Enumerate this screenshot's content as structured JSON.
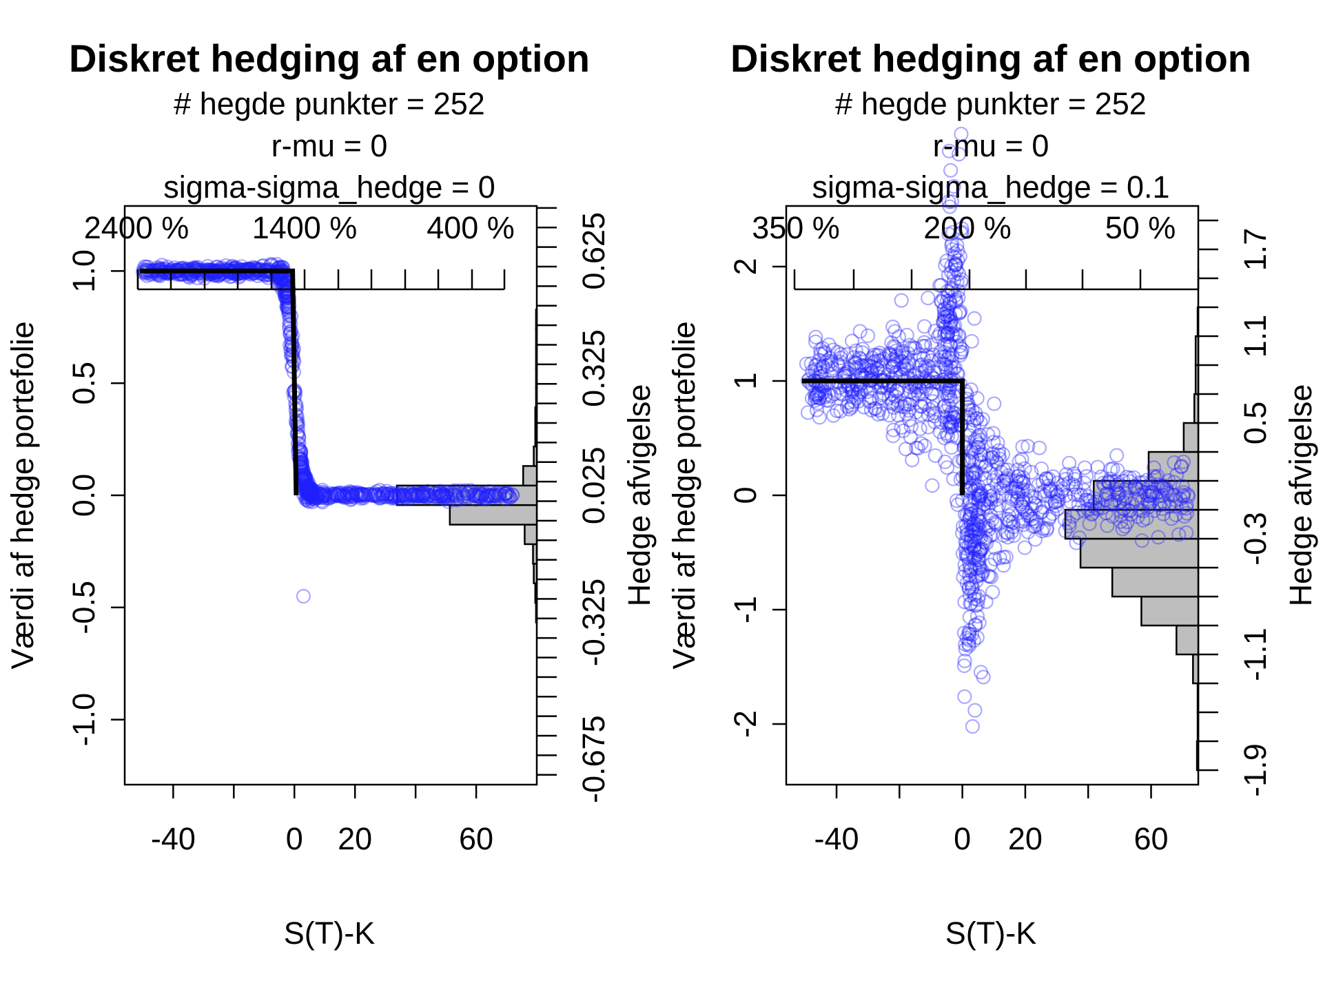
{
  "chart_data": [
    {
      "type": "scatter",
      "title": "Diskret hedging af en option",
      "subtitle_lines": [
        "# hegde punkter = 252",
        "r-mu = 0",
        "sigma-sigma_hedge = 0"
      ],
      "xlabel": "S(T)-K",
      "ylabel": "Værdi af hedge portefolie",
      "ylabel_right": "Hedge afvigelse",
      "xlim": [
        -56,
        80
      ],
      "ylim": [
        -1.29,
        1.29
      ],
      "x_ticks": [
        -40,
        -20,
        0,
        20,
        40,
        60
      ],
      "x_tick_labels": [
        "-40",
        "",
        "0",
        "20",
        "",
        "60"
      ],
      "y_ticks": [
        -1.0,
        -0.5,
        0.0,
        0.5,
        1.0
      ],
      "y_tick_labels": [
        "-1.0",
        "-0.5",
        "0.0",
        "0.5",
        "1.0"
      ],
      "top_ticks": [
        "2400 %",
        "1400 %",
        "400 %"
      ],
      "right_ticks": [
        "-0.675",
        "-0.325",
        "0.025",
        "0.325",
        "0.625"
      ],
      "right_axis_range": [
        -0.74,
        0.74
      ],
      "right_axis_step": 0.05,
      "payoff": {
        "x": [
          -51,
          -0.6,
          0.6
        ],
        "y": [
          1,
          1,
          0
        ]
      },
      "histogram": {
        "orientation": "horizontal",
        "bin_edges": [
          -0.675,
          -0.625,
          -0.575,
          -0.525,
          -0.475,
          -0.425,
          -0.375,
          -0.325,
          -0.275,
          -0.225,
          -0.175,
          -0.125,
          -0.075,
          -0.025,
          0.025,
          0.075,
          0.125,
          0.175,
          0.225,
          0.275,
          0.325,
          0.375,
          0.425,
          0.475,
          0.525,
          0.575,
          0.625
        ],
        "counts": [
          0,
          0,
          0,
          0,
          0,
          0,
          0,
          1,
          2,
          4,
          5,
          16,
          115,
          185,
          18,
          4,
          2,
          2,
          1,
          1,
          1,
          1,
          1,
          0,
          0,
          0
        ]
      }
    },
    {
      "type": "scatter",
      "title": "Diskret hedging af en option",
      "subtitle_lines": [
        "# hegde punkter = 252",
        "r-mu = 0",
        "sigma-sigma_hedge = 0.1"
      ],
      "xlabel": "S(T)-K",
      "ylabel": "Værdi af hedge portefolie",
      "ylabel_right": "Hedge afvigelse",
      "xlim": [
        -56,
        75
      ],
      "ylim": [
        -2.53,
        2.53
      ],
      "x_ticks": [
        -40,
        -20,
        0,
        20,
        40,
        60
      ],
      "x_tick_labels": [
        "-40",
        "",
        "0",
        "20",
        "",
        "60"
      ],
      "y_ticks": [
        -2,
        -1,
        0,
        1,
        2
      ],
      "y_tick_labels": [
        "-2",
        "-1",
        "0",
        "1",
        "2"
      ],
      "top_ticks": [
        "350 %",
        "200 %",
        "50 %"
      ],
      "right_ticks": [
        "-1.9",
        "-1.1",
        "-0.3",
        "0.5",
        "1.1",
        "1.7"
      ],
      "right_axis_range": [
        -2.0,
        2.0
      ],
      "right_axis_step": 0.2,
      "payoff": {
        "x": [
          -51,
          0,
          0
        ],
        "y": [
          1,
          1,
          0
        ]
      },
      "histogram": {
        "orientation": "horizontal",
        "bin_edges": [
          -1.9,
          -1.7,
          -1.5,
          -1.3,
          -1.1,
          -0.9,
          -0.7,
          -0.5,
          -0.3,
          -0.1,
          0.1,
          0.3,
          0.5,
          0.7,
          0.9,
          1.1,
          1.3
        ],
        "counts": [
          2,
          1,
          1,
          8,
          33,
          86,
          130,
          178,
          201,
          158,
          75,
          22,
          6,
          4,
          4,
          1
        ]
      }
    }
  ]
}
